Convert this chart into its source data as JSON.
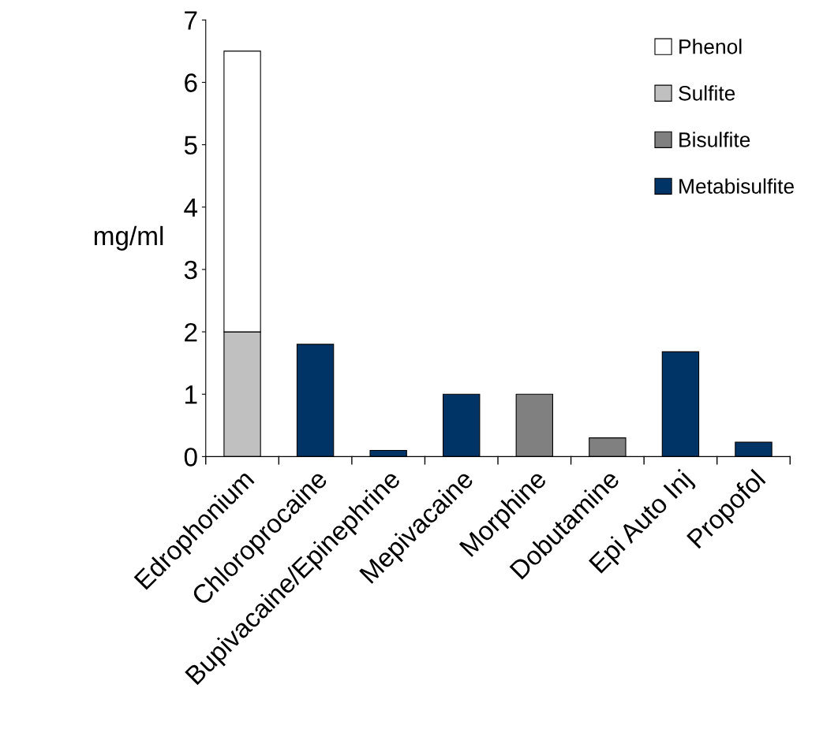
{
  "chart_data": {
    "type": "bar",
    "stacked": true,
    "ylabel": "mg/ml",
    "categories": [
      "Edrophonium",
      "Chloroprocaine",
      "Bupivacaine/Epinephrine",
      "Mepivacaine",
      "Morphine",
      "Dobutamine",
      "Epi Auto Inj",
      "Propofol"
    ],
    "series": [
      {
        "name": "Metabisulfite",
        "color": "#003366",
        "values": [
          null,
          1.8,
          0.1,
          1.0,
          null,
          null,
          1.68,
          0.23
        ]
      },
      {
        "name": "Bisulfite",
        "color": "#808080",
        "values": [
          null,
          null,
          null,
          null,
          1.0,
          0.3,
          null,
          null
        ]
      },
      {
        "name": "Sulfite",
        "color": "#c0c0c0",
        "values": [
          2.0,
          null,
          null,
          null,
          null,
          null,
          null,
          null
        ]
      },
      {
        "name": "Phenol",
        "color": "#ffffff",
        "values": [
          4.5,
          null,
          null,
          null,
          null,
          null,
          null,
          null
        ]
      }
    ],
    "ylim": [
      0,
      7
    ],
    "yticks": [
      0,
      1,
      2,
      3,
      4,
      5,
      6,
      7
    ],
    "grid": false,
    "legend": "top right"
  }
}
